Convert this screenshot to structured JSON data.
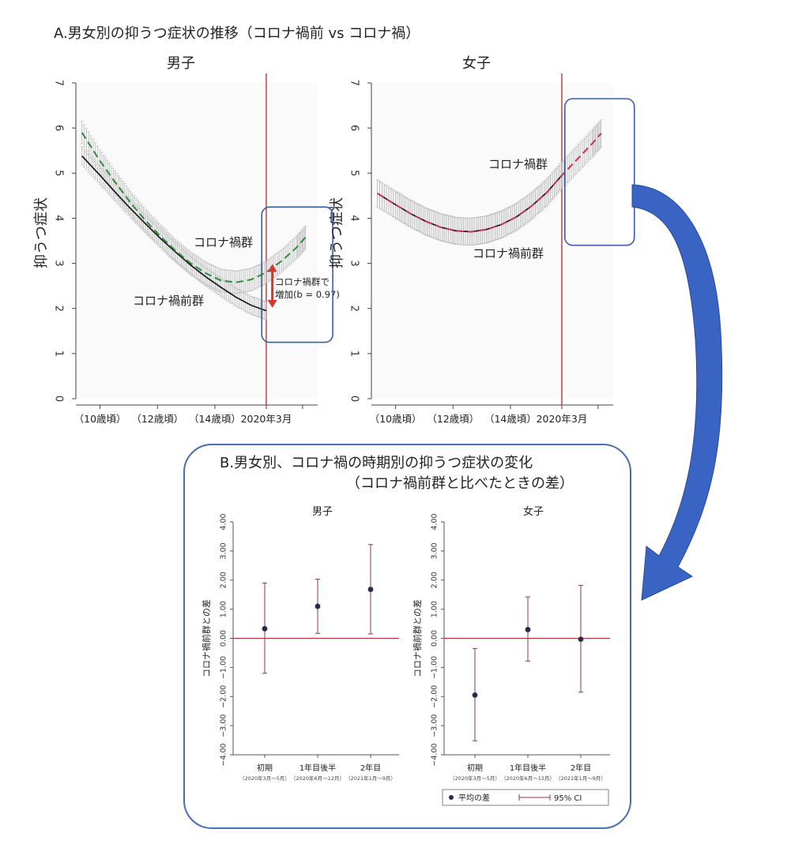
{
  "section_a": {
    "title": "A.男女別の抑うつ症状の推移（コロナ禍前 vs コロナ禍）"
  },
  "section_b": {
    "title_line1": "B.男女別、コロナ禍の時期別の抑うつ症状の変化",
    "title_line2": "（コロナ禍前群と比べたときの差）"
  },
  "colors": {
    "pre_line": "#111111",
    "post_male": "#2e8b3e",
    "post_female": "#c8305a",
    "ci_band": "#b8b8b8",
    "ref_line": "#b33a3a",
    "highlight_box": "#3a5fa8",
    "arrow": "#3a64c4",
    "point": "#2a2a4a"
  },
  "chart_data": [
    {
      "id": "A-male",
      "type": "line",
      "title": "男子",
      "ylabel": "抑うつ症状",
      "ylim": [
        0,
        7
      ],
      "yticks": [
        "0",
        "1",
        "2",
        "3",
        "4",
        "5",
        "6",
        "7"
      ],
      "xticks": [
        "（10歳頃）",
        "（12歳頃）",
        "（14歳頃）",
        "2020年3月"
      ],
      "xlim": [
        9.7,
        17.7
      ],
      "cutoff_x": 16,
      "series": [
        {
          "name": "コロナ禍前群",
          "style": "solid",
          "x": [
            9.9,
            10.5,
            11,
            11.5,
            12,
            12.5,
            13,
            13.5,
            14,
            14.5,
            15,
            15.5,
            16
          ],
          "y": [
            5.38,
            4.95,
            4.58,
            4.22,
            3.88,
            3.55,
            3.25,
            2.96,
            2.7,
            2.47,
            2.25,
            2.07,
            1.95
          ],
          "ci": 0.2
        },
        {
          "name": "コロナ禍群",
          "style": "dashed",
          "x": [
            9.9,
            10.5,
            11,
            11.5,
            12,
            12.5,
            13,
            13.5,
            14,
            14.5,
            15,
            15.5,
            16,
            16.5,
            17,
            17.3
          ],
          "y": [
            5.9,
            5.27,
            4.8,
            4.35,
            3.95,
            3.6,
            3.28,
            3.0,
            2.78,
            2.62,
            2.58,
            2.64,
            2.8,
            3.05,
            3.35,
            3.58
          ],
          "ci": 0.25
        }
      ],
      "annotations": [
        "コロナ禍群",
        "コロナ禍前群",
        "コロナ禍群で",
        "増加(b = 0.97)"
      ]
    },
    {
      "id": "A-female",
      "type": "line",
      "title": "女子",
      "ylabel": "抑うつ症状",
      "ylim": [
        0,
        7
      ],
      "yticks": [
        "0",
        "1",
        "2",
        "3",
        "4",
        "5",
        "6",
        "7"
      ],
      "xticks": [
        "（10歳頃）",
        "（12歳頃）",
        "（14歳頃）",
        "2020年3月"
      ],
      "xlim": [
        9.7,
        17.7
      ],
      "cutoff_x": 16,
      "series": [
        {
          "name": "コロナ禍前群",
          "style": "solid",
          "x": [
            9.9,
            10.5,
            11,
            11.5,
            12,
            12.5,
            13,
            13.5,
            14,
            14.5,
            15,
            15.5,
            16
          ],
          "y": [
            4.55,
            4.3,
            4.1,
            3.93,
            3.8,
            3.72,
            3.7,
            3.75,
            3.86,
            4.03,
            4.27,
            4.57,
            4.95
          ],
          "ci": 0.3
        },
        {
          "name": "コロナ禍群",
          "style": "dashed",
          "x": [
            9.9,
            10.5,
            11,
            11.5,
            12,
            12.5,
            13,
            13.5,
            14,
            14.5,
            15,
            15.5,
            16,
            16.5,
            17,
            17.3
          ],
          "y": [
            4.55,
            4.3,
            4.1,
            3.93,
            3.8,
            3.72,
            3.7,
            3.75,
            3.86,
            4.03,
            4.27,
            4.57,
            4.95,
            5.3,
            5.65,
            5.88
          ],
          "ci": 0.3
        }
      ],
      "annotations": [
        "コロナ禍群",
        "コロナ禍前群"
      ]
    },
    {
      "id": "B-male",
      "type": "scatter",
      "title": "男子",
      "ylabel": "コロナ禍前群との差",
      "ylim": [
        -4,
        4
      ],
      "yticks": [
        "−4.00",
        "−3.00",
        "−2.00",
        "−1.00",
        "0.00",
        "1.00",
        "2.00",
        "3.00",
        "4.00"
      ],
      "categories": [
        "初期",
        "1年目後半",
        "2年目"
      ],
      "subcategories": [
        "（2020年3月～5月）",
        "（2020年6月～12月）",
        "（2021年1月～9月）"
      ],
      "values": [
        0.33,
        1.1,
        1.68
      ],
      "ci_low": [
        -1.2,
        0.17,
        0.15
      ],
      "ci_high": [
        1.9,
        2.03,
        3.22
      ]
    },
    {
      "id": "B-female",
      "type": "scatter",
      "title": "女子",
      "ylabel": "コロナ禍前群との差",
      "ylim": [
        -4,
        4
      ],
      "yticks": [
        "−4.00",
        "−3.00",
        "−2.00",
        "−1.00",
        "0.00",
        "1.00",
        "2.00",
        "3.00",
        "4.00"
      ],
      "categories": [
        "初期",
        "1年目後半",
        "2年目"
      ],
      "subcategories": [
        "（2020年3月～5月）",
        "（2020年6月～12月）",
        "（2021年1月～9月）"
      ],
      "values": [
        -1.95,
        0.3,
        -0.03
      ],
      "ci_low": [
        -3.52,
        -0.78,
        -1.85
      ],
      "ci_high": [
        -0.35,
        1.42,
        1.82
      ]
    }
  ],
  "legend": {
    "point_label": "平均の差",
    "ci_label": "95% CI"
  }
}
